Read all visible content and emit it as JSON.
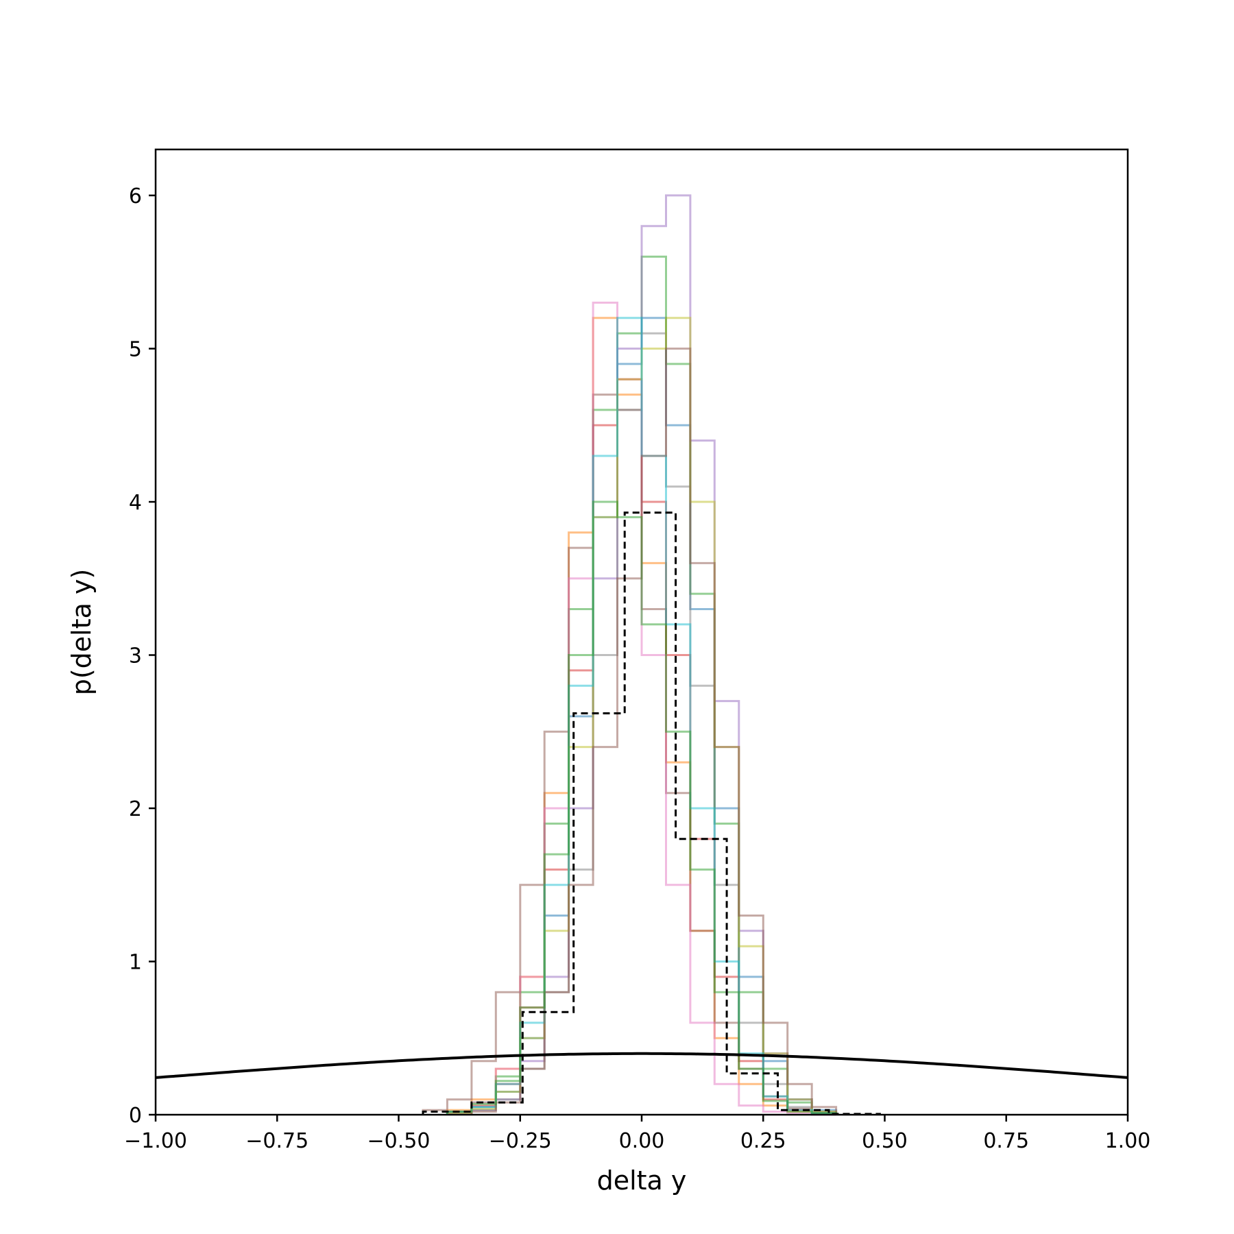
{
  "chart_data": {
    "type": "histogram",
    "xlabel": "delta y",
    "ylabel": "p(delta y)",
    "xlim": [
      -1.0,
      1.0
    ],
    "ylim": [
      0,
      6.3
    ],
    "x_ticks": [
      -1.0,
      -0.75,
      -0.5,
      -0.25,
      0.0,
      0.25,
      0.5,
      0.75,
      1.0
    ],
    "x_tick_labels": [
      "−1.00",
      "−0.75",
      "−0.50",
      "−0.25",
      "0.00",
      "0.25",
      "0.50",
      "0.75",
      "1.00"
    ],
    "y_ticks": [
      0,
      1,
      2,
      3,
      4,
      5,
      6
    ],
    "y_tick_labels": [
      "0",
      "1",
      "2",
      "3",
      "4",
      "5",
      "6"
    ],
    "grid": false,
    "series": [
      {
        "color": "#1f77b4",
        "edges": [
          -0.4,
          -0.35,
          -0.3,
          -0.25,
          -0.2,
          -0.15,
          -0.1,
          -0.05,
          0,
          0.05,
          0.1,
          0.15,
          0.2,
          0.25,
          0.3,
          0.35,
          0.4
        ],
        "values": [
          0.02,
          0.05,
          0.15,
          0.5,
          1.3,
          2.6,
          3.9,
          4.9,
          5.2,
          4.5,
          3.3,
          2.0,
          0.9,
          0.35,
          0.1,
          0.03
        ]
      },
      {
        "color": "#ff7f0e",
        "edges": [
          -0.4,
          -0.35,
          -0.3,
          -0.25,
          -0.2,
          -0.15,
          -0.1,
          -0.05,
          0,
          0.05,
          0.1,
          0.15,
          0.2,
          0.25,
          0.3,
          0.35,
          0.4
        ],
        "values": [
          0.03,
          0.1,
          0.3,
          0.9,
          2.1,
          3.8,
          5.2,
          4.7,
          3.6,
          2.3,
          1.2,
          0.5,
          0.2,
          0.06,
          0.02,
          0.01
        ]
      },
      {
        "color": "#2ca02c",
        "edges": [
          -0.4,
          -0.35,
          -0.3,
          -0.25,
          -0.2,
          -0.15,
          -0.1,
          -0.05,
          0,
          0.05,
          0.1,
          0.15,
          0.2,
          0.25,
          0.3,
          0.35,
          0.4
        ],
        "values": [
          0.02,
          0.08,
          0.25,
          0.8,
          1.9,
          3.3,
          4.6,
          5.1,
          5.6,
          4.9,
          3.4,
          1.9,
          0.8,
          0.3,
          0.08,
          0.02
        ]
      },
      {
        "color": "#d62728",
        "edges": [
          -0.4,
          -0.35,
          -0.3,
          -0.25,
          -0.2,
          -0.15,
          -0.1,
          -0.05,
          0,
          0.05,
          0.1,
          0.15,
          0.2,
          0.25,
          0.3,
          0.35,
          0.4
        ],
        "values": [
          0.02,
          0.06,
          0.2,
          0.7,
          1.6,
          2.9,
          4.5,
          4.8,
          4.0,
          3.0,
          1.8,
          0.9,
          0.35,
          0.1,
          0.03,
          0.01
        ]
      },
      {
        "color": "#9467bd",
        "edges": [
          -0.4,
          -0.35,
          -0.3,
          -0.25,
          -0.2,
          -0.15,
          -0.1,
          -0.05,
          0,
          0.05,
          0.1,
          0.15,
          0.2,
          0.25,
          0.3,
          0.35,
          0.4
        ],
        "values": [
          0.01,
          0.03,
          0.1,
          0.35,
          0.9,
          2.0,
          3.5,
          5.0,
          5.8,
          6.0,
          4.4,
          2.7,
          1.2,
          0.4,
          0.1,
          0.02
        ]
      },
      {
        "color": "#8c564b",
        "edges": [
          -0.45,
          -0.4,
          -0.35,
          -0.3,
          -0.25,
          -0.2,
          -0.15,
          -0.1,
          -0.05,
          0,
          0.05,
          0.1,
          0.15,
          0.2,
          0.25,
          0.3,
          0.35,
          0.4
        ],
        "values": [
          0.03,
          0.1,
          0.35,
          0.8,
          1.5,
          2.5,
          3.7,
          4.7,
          4.6,
          3.3,
          2.1,
          1.2,
          0.6,
          0.3,
          0.12,
          0.04,
          0.01
        ]
      },
      {
        "color": "#e377c2",
        "edges": [
          -0.4,
          -0.35,
          -0.3,
          -0.25,
          -0.2,
          -0.15,
          -0.1,
          -0.05,
          0,
          0.05,
          0.1,
          0.15,
          0.2,
          0.25,
          0.3,
          0.35,
          0.4
        ],
        "values": [
          0.02,
          0.08,
          0.3,
          0.9,
          2.0,
          3.5,
          5.3,
          4.8,
          3.0,
          1.5,
          0.6,
          0.2,
          0.06,
          0.02,
          0.01,
          0.0
        ]
      },
      {
        "color": "#7f7f7f",
        "edges": [
          -0.4,
          -0.35,
          -0.3,
          -0.25,
          -0.2,
          -0.15,
          -0.1,
          -0.05,
          0,
          0.05,
          0.1,
          0.15,
          0.2,
          0.25,
          0.3,
          0.35,
          0.4
        ],
        "values": [
          0.01,
          0.03,
          0.1,
          0.3,
          0.8,
          1.6,
          3.0,
          4.6,
          5.1,
          4.1,
          2.8,
          1.5,
          0.6,
          0.2,
          0.05,
          0.01
        ]
      },
      {
        "color": "#bcbd22",
        "edges": [
          -0.4,
          -0.35,
          -0.3,
          -0.25,
          -0.2,
          -0.15,
          -0.1,
          -0.05,
          0,
          0.05,
          0.1,
          0.15,
          0.2,
          0.25,
          0.3,
          0.35,
          0.4
        ],
        "values": [
          0.01,
          0.04,
          0.15,
          0.5,
          1.2,
          2.4,
          3.9,
          4.8,
          5.0,
          5.2,
          4.0,
          2.4,
          1.1,
          0.4,
          0.1,
          0.02
        ]
      },
      {
        "color": "#17becf",
        "edges": [
          -0.4,
          -0.35,
          -0.3,
          -0.25,
          -0.2,
          -0.15,
          -0.1,
          -0.05,
          0,
          0.05,
          0.1,
          0.15,
          0.2,
          0.25,
          0.3,
          0.35,
          0.4
        ],
        "values": [
          0.02,
          0.05,
          0.2,
          0.6,
          1.5,
          2.8,
          4.3,
          5.2,
          4.3,
          3.2,
          2.0,
          1.0,
          0.4,
          0.12,
          0.03,
          0.01
        ]
      },
      {
        "color": "#8c564b",
        "edges": [
          -0.35,
          -0.3,
          -0.25,
          -0.2,
          -0.15,
          -0.1,
          -0.05,
          0,
          0.05,
          0.1,
          0.15,
          0.2,
          0.25,
          0.3,
          0.35,
          0.4
        ],
        "values": [
          0.02,
          0.08,
          0.3,
          0.8,
          1.5,
          2.4,
          3.5,
          4.3,
          5.0,
          3.6,
          2.4,
          1.3,
          0.6,
          0.2,
          0.05
        ]
      },
      {
        "color": "#2ca02c",
        "edges": [
          -0.4,
          -0.35,
          -0.3,
          -0.25,
          -0.2,
          -0.15,
          -0.1,
          -0.05,
          0,
          0.05,
          0.1,
          0.15,
          0.2,
          0.25,
          0.3,
          0.35,
          0.4
        ],
        "values": [
          0.02,
          0.07,
          0.22,
          0.7,
          1.7,
          3.0,
          4.0,
          3.9,
          3.2,
          2.5,
          1.6,
          0.8,
          0.3,
          0.09,
          0.02,
          0.01
        ]
      }
    ],
    "aggregate": {
      "color": "#000000",
      "style": "dashed",
      "edges": [
        -0.45,
        -0.35,
        -0.245,
        -0.14,
        -0.035,
        0.07,
        0.175,
        0.28,
        0.385,
        0.49
      ],
      "values": [
        0.02,
        0.08,
        0.67,
        2.62,
        3.93,
        1.8,
        0.27,
        0.03,
        0.005
      ]
    },
    "curve": {
      "type": "normal-pdf",
      "mean": 0,
      "std": 1,
      "color": "#000000"
    }
  }
}
